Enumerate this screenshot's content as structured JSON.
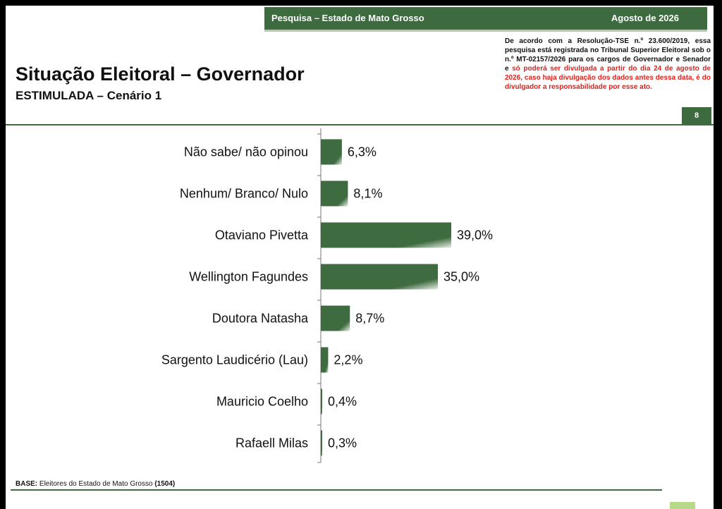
{
  "header": {
    "survey_label": "Pesquisa – Estado de Mato Grosso",
    "date_label": "Agosto de 2026"
  },
  "notice": {
    "text_black": "De acordo com a Resolução-TSE n.º 23.600/2019, essa pesquisa está registrada no Tribunal Superior Eleitoral sob o n.º MT-02157/2026 para os cargos de Governador e Senador e ",
    "text_red": "só poderá ser divulgada a partir do dia 24 de agosto de 2026, caso haja divulgação dos dados antes dessa data, é do divulgador a responsabilidade por esse ato."
  },
  "page_number": "8",
  "base": {
    "label": "BASE:",
    "text": "Eleitores do Estado de Mato Grosso",
    "count": "(1504)"
  },
  "colors": {
    "bar": "#3f6b40",
    "bar_light": "#e8efe6",
    "accent": "#3d6b3f"
  },
  "chart_data": {
    "type": "bar",
    "orientation": "horizontal",
    "title": "Situação Eleitoral – Governador",
    "subtitle": "ESTIMULADA – Cenário 1",
    "categories": [
      "Não sabe/ não opinou",
      "Nenhum/ Branco/ Nulo",
      "Otaviano Pivetta",
      "Wellington Fagundes",
      "Doutora Natasha",
      "Sargento Laudicério (Lau)",
      "Mauricio Coelho",
      "Rafaell Milas"
    ],
    "values": [
      6.3,
      8.1,
      39.0,
      35.0,
      8.7,
      2.2,
      0.4,
      0.3
    ],
    "value_labels": [
      "6,3%",
      "8,1%",
      "39,0%",
      "35,0%",
      "8,7%",
      "2,2%",
      "0,4%",
      "0,3%"
    ],
    "unit": "%",
    "xlim": [
      0,
      42
    ],
    "grid": false,
    "legend": "none"
  }
}
